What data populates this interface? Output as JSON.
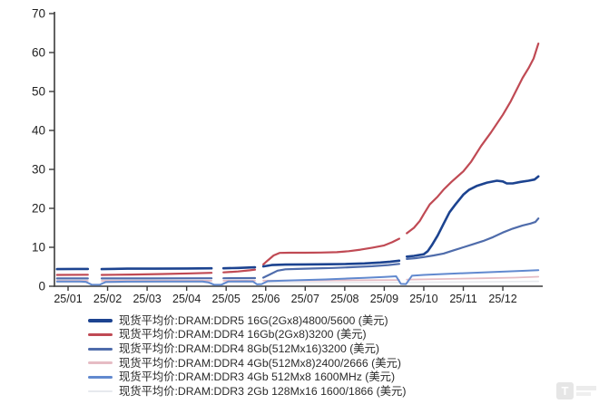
{
  "page": {
    "background": "#ffffff"
  },
  "chart_data": {
    "type": "line",
    "title": "",
    "xlabel": "",
    "ylabel": "",
    "x_tick_labels": [
      "25/01",
      "25/02",
      "25/03",
      "25/04",
      "25/05",
      "25/06",
      "25/07",
      "25/08",
      "25/09",
      "25/10",
      "25/11",
      "25/12"
    ],
    "y_ticks": [
      0,
      10,
      20,
      30,
      40,
      50,
      60,
      70
    ],
    "ylim": [
      0,
      70
    ],
    "grid": false,
    "legend_position": "bottom-left",
    "axis_color": "#3a3a3a",
    "label_color": "#1f1f1f",
    "series": [
      {
        "name": "现货平均价:DRAM:DDR3 2Gb 128Mx16 1600/1866 (美元)",
        "color": "#e7e9ee",
        "line_width": 1.6,
        "monthly_values": [
          0.9,
          0.9,
          0.9,
          0.9,
          0.95,
          0.95,
          0.95,
          1.0,
          1.0,
          1.05,
          1.1,
          1.2
        ],
        "segments": [
          [
            [
              -0.28,
              0.9
            ],
            [
              0.5,
              0.9
            ]
          ],
          [
            [
              0.85,
              0.9
            ],
            [
              3.63,
              0.92
            ]
          ],
          [
            [
              3.93,
              0.92
            ],
            [
              4.73,
              0.95
            ]
          ],
          [
            [
              4.94,
              0.95
            ],
            [
              8.38,
              1.0
            ]
          ],
          [
            [
              8.57,
              1.0
            ],
            [
              10.0,
              1.1
            ],
            [
              11.9,
              1.25
            ]
          ]
        ]
      },
      {
        "name": "现货平均价:DRAM:DDR4 4Gb(512Mx8)2400/2666 (美元)",
        "color": "#e6bcc4",
        "line_width": 1.8,
        "monthly_values": [
          1.4,
          1.4,
          1.4,
          1.4,
          1.45,
          1.45,
          1.5,
          1.5,
          1.55,
          1.75,
          1.95,
          2.15
        ],
        "segments": [
          [
            [
              -0.28,
              1.4
            ],
            [
              0.5,
              1.4
            ]
          ],
          [
            [
              0.85,
              1.4
            ],
            [
              3.63,
              1.42
            ]
          ],
          [
            [
              3.93,
              1.42
            ],
            [
              4.73,
              1.45
            ]
          ],
          [
            [
              4.94,
              1.45
            ],
            [
              6.5,
              1.5
            ],
            [
              8.38,
              1.6
            ]
          ],
          [
            [
              8.57,
              1.7
            ],
            [
              9.5,
              1.85
            ],
            [
              10.5,
              2.05
            ],
            [
              11.3,
              2.2
            ],
            [
              11.9,
              2.45
            ]
          ]
        ]
      },
      {
        "name": "现货平均价:DRAM:DDR3 4Gb 512Mx8 1600MHz (美元)",
        "color": "#6189cf",
        "line_width": 2.0,
        "monthly_values": [
          1.2,
          1.1,
          1.2,
          1.2,
          1.2,
          1.3,
          1.6,
          1.95,
          2.4,
          2.9,
          3.35,
          3.75
        ],
        "segments": [
          [
            [
              -0.28,
              1.2
            ],
            [
              0.3,
              1.2
            ],
            [
              0.45,
              1.15
            ],
            [
              0.6,
              0.4
            ],
            [
              0.8,
              0.38
            ],
            [
              0.95,
              1.1
            ],
            [
              1.5,
              1.18
            ],
            [
              2.5,
              1.2
            ],
            [
              3.4,
              1.22
            ],
            [
              3.55,
              1.0
            ],
            [
              3.7,
              0.38
            ],
            [
              3.88,
              0.4
            ],
            [
              4.05,
              1.2
            ],
            [
              4.5,
              1.25
            ],
            [
              4.68,
              1.2
            ],
            [
              4.78,
              0.5
            ],
            [
              4.9,
              0.55
            ],
            [
              5.05,
              1.3
            ],
            [
              5.5,
              1.45
            ],
            [
              6.0,
              1.6
            ],
            [
              6.5,
              1.75
            ],
            [
              7.0,
              1.95
            ],
            [
              7.5,
              2.15
            ],
            [
              8.0,
              2.4
            ],
            [
              8.3,
              2.55
            ],
            [
              8.42,
              0.6
            ],
            [
              8.55,
              0.55
            ],
            [
              8.7,
              2.7
            ],
            [
              9.0,
              2.9
            ],
            [
              9.5,
              3.15
            ],
            [
              10.0,
              3.35
            ],
            [
              10.5,
              3.55
            ],
            [
              11.0,
              3.75
            ],
            [
              11.5,
              3.95
            ],
            [
              11.9,
              4.15
            ]
          ]
        ]
      },
      {
        "name": "现货平均价:DRAM:DDR4 8Gb(512Mx16)3200 (美元)",
        "color": "#4f6cab",
        "line_width": 2.2,
        "monthly_values": [
          2.0,
          2.0,
          2.0,
          2.05,
          2.05,
          2.5,
          4.5,
          4.9,
          5.4,
          7.5,
          10.0,
          13.8
        ],
        "segments": [
          [
            [
              -0.28,
              2.0
            ],
            [
              0.5,
              2.0
            ]
          ],
          [
            [
              0.85,
              2.0
            ],
            [
              2.0,
              2.0
            ],
            [
              3.63,
              2.05
            ]
          ],
          [
            [
              3.93,
              2.05
            ],
            [
              4.73,
              2.1
            ]
          ],
          [
            [
              4.94,
              2.2
            ],
            [
              5.1,
              3.0
            ],
            [
              5.3,
              4.0
            ],
            [
              5.5,
              4.35
            ],
            [
              5.8,
              4.45
            ],
            [
              6.2,
              4.55
            ],
            [
              6.7,
              4.7
            ],
            [
              7.2,
              4.9
            ],
            [
              7.7,
              5.15
            ],
            [
              8.1,
              5.45
            ],
            [
              8.38,
              5.75
            ]
          ],
          [
            [
              8.57,
              7.0
            ],
            [
              8.8,
              7.2
            ],
            [
              9.0,
              7.5
            ],
            [
              9.25,
              7.9
            ],
            [
              9.5,
              8.4
            ],
            [
              9.75,
              9.2
            ],
            [
              10.0,
              10.0
            ],
            [
              10.25,
              10.8
            ],
            [
              10.5,
              11.6
            ],
            [
              10.75,
              12.6
            ],
            [
              11.0,
              13.8
            ],
            [
              11.25,
              14.8
            ],
            [
              11.5,
              15.6
            ],
            [
              11.7,
              16.1
            ],
            [
              11.82,
              16.5
            ],
            [
              11.9,
              17.4
            ]
          ]
        ]
      },
      {
        "name": "现货平均价:DRAM:DDR4 16Gb(2Gx8)3200 (美元)",
        "color": "#c04a54",
        "line_width": 2.2,
        "monthly_values": [
          2.9,
          2.9,
          3.1,
          3.3,
          3.6,
          6.3,
          8.6,
          8.9,
          10.5,
          18.5,
          29.5,
          44.0
        ],
        "segments": [
          [
            [
              -0.28,
              2.9
            ],
            [
              0.5,
              2.95
            ]
          ],
          [
            [
              0.85,
              2.9
            ],
            [
              1.6,
              3.0
            ],
            [
              2.4,
              3.15
            ],
            [
              3.1,
              3.3
            ],
            [
              3.63,
              3.45
            ]
          ],
          [
            [
              3.93,
              3.55
            ],
            [
              4.3,
              3.8
            ],
            [
              4.6,
              4.1
            ],
            [
              4.73,
              4.25
            ]
          ],
          [
            [
              4.94,
              5.6
            ],
            [
              5.05,
              6.6
            ],
            [
              5.2,
              7.9
            ],
            [
              5.35,
              8.55
            ],
            [
              5.6,
              8.6
            ],
            [
              6.0,
              8.6
            ],
            [
              6.4,
              8.65
            ],
            [
              6.8,
              8.75
            ],
            [
              7.1,
              9.0
            ],
            [
              7.4,
              9.4
            ],
            [
              7.7,
              9.9
            ],
            [
              8.0,
              10.5
            ],
            [
              8.2,
              11.3
            ],
            [
              8.38,
              12.2
            ]
          ],
          [
            [
              8.57,
              13.6
            ],
            [
              8.75,
              15.0
            ],
            [
              8.9,
              16.8
            ],
            [
              9.0,
              18.5
            ],
            [
              9.15,
              21.0
            ],
            [
              9.35,
              23.0
            ],
            [
              9.5,
              24.8
            ],
            [
              9.7,
              26.8
            ],
            [
              10.0,
              29.5
            ],
            [
              10.2,
              32.0
            ],
            [
              10.45,
              36.0
            ],
            [
              10.7,
              39.5
            ],
            [
              11.0,
              44.0
            ],
            [
              11.2,
              47.5
            ],
            [
              11.35,
              50.5
            ],
            [
              11.5,
              53.5
            ],
            [
              11.65,
              56.0
            ],
            [
              11.78,
              58.5
            ],
            [
              11.9,
              62.3
            ]
          ]
        ]
      },
      {
        "name": "现货平均价:DRAM:DDR5 16G(2Gx8)4800/5600 (美元)",
        "color": "#1c4390",
        "line_width": 2.6,
        "monthly_values": [
          4.4,
          4.5,
          4.5,
          4.55,
          4.6,
          5.2,
          5.6,
          5.7,
          6.2,
          8.2,
          23.5,
          26.9
        ],
        "segments": [
          [
            [
              -0.28,
              4.4
            ],
            [
              0.2,
              4.45
            ],
            [
              0.5,
              4.45
            ]
          ],
          [
            [
              0.85,
              4.4
            ],
            [
              1.5,
              4.5
            ],
            [
              2.2,
              4.5
            ],
            [
              3.0,
              4.55
            ],
            [
              3.63,
              4.6
            ]
          ],
          [
            [
              3.93,
              4.6
            ],
            [
              4.3,
              4.7
            ],
            [
              4.73,
              4.85
            ]
          ],
          [
            [
              4.94,
              5.1
            ],
            [
              5.15,
              5.45
            ],
            [
              5.5,
              5.55
            ],
            [
              6.0,
              5.6
            ],
            [
              6.6,
              5.65
            ],
            [
              7.0,
              5.7
            ],
            [
              7.5,
              5.85
            ],
            [
              7.9,
              6.1
            ],
            [
              8.15,
              6.3
            ],
            [
              8.38,
              6.55
            ]
          ],
          [
            [
              8.57,
              7.6
            ],
            [
              8.75,
              7.8
            ],
            [
              9.0,
              8.2
            ],
            [
              9.1,
              9.0
            ],
            [
              9.2,
              10.5
            ],
            [
              9.35,
              13.0
            ],
            [
              9.5,
              16.0
            ],
            [
              9.65,
              19.0
            ],
            [
              9.8,
              21.0
            ],
            [
              10.0,
              23.5
            ],
            [
              10.15,
              24.8
            ],
            [
              10.35,
              25.8
            ],
            [
              10.6,
              26.6
            ],
            [
              10.85,
              27.1
            ],
            [
              11.0,
              26.9
            ],
            [
              11.1,
              26.4
            ],
            [
              11.25,
              26.4
            ],
            [
              11.45,
              26.8
            ],
            [
              11.65,
              27.1
            ],
            [
              11.8,
              27.4
            ],
            [
              11.9,
              28.2
            ]
          ]
        ]
      }
    ]
  },
  "legend_order": [
    5,
    4,
    3,
    1,
    2,
    0
  ],
  "watermark": {
    "letter": "T"
  }
}
